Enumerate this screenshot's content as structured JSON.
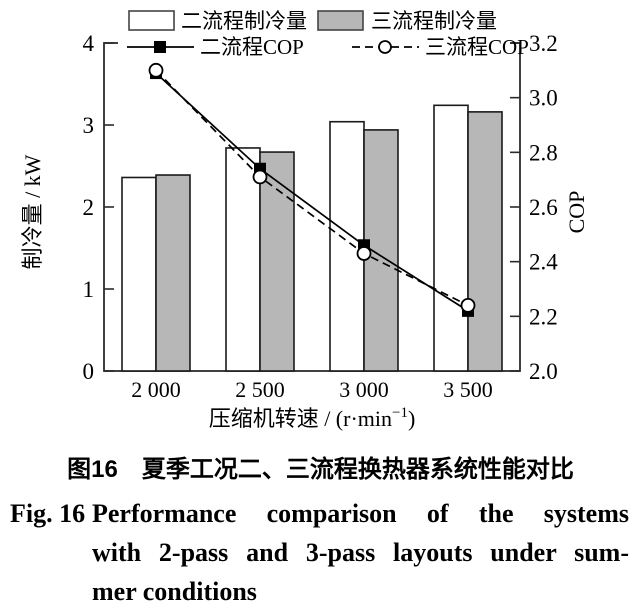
{
  "figure": {
    "caption_cn": "图16　夏季工况二、三流程换热器系统性能对比",
    "caption_en": {
      "fig_label": "Fig. 16",
      "line1": "Performance comparison of the systems",
      "line2": "with 2-pass and 3-pass layouts under sum-",
      "line3": "mer conditions"
    }
  },
  "chart_data": {
    "type": "bar+line",
    "title": "",
    "categories": [
      "2 000",
      "2 500",
      "3 000",
      "3 500"
    ],
    "xlabel": "压缩机转速 / (r·min^{−1})",
    "ylabel_left": "制冷量 / kW",
    "ylabel_right": "COP",
    "left_axis": {
      "min": 0,
      "max": 4,
      "ticks": [
        "0",
        "1",
        "2",
        "3",
        "4"
      ]
    },
    "right_axis": {
      "min": 2.0,
      "max": 3.2,
      "ticks": [
        "2.0",
        "2.2",
        "2.4",
        "2.6",
        "2.8",
        "3.0",
        "3.2"
      ]
    },
    "grid": false,
    "legend_position": "top",
    "bar_series": [
      {
        "name": "二流程制冷量",
        "axis": "left",
        "fill": "#ffffff",
        "values": [
          2.36,
          2.72,
          3.04,
          3.24
        ]
      },
      {
        "name": "三流程制冷量",
        "axis": "left",
        "fill": "#b7b7b7",
        "values": [
          2.39,
          2.67,
          2.94,
          3.16
        ]
      }
    ],
    "line_series": [
      {
        "name": "二流程COP",
        "axis": "right",
        "marker": "filled-square",
        "dash": "solid",
        "values": [
          3.09,
          2.74,
          2.46,
          2.22
        ]
      },
      {
        "name": "三流程COP",
        "axis": "right",
        "marker": "open-circle",
        "dash": "dashed",
        "values": [
          3.1,
          2.71,
          2.43,
          2.24
        ]
      }
    ],
    "colors": {
      "stroke": "#000000",
      "axis": "#2b2b2b",
      "bar_edge": "#1a1a1a",
      "gray_bar": "#b7b7b7"
    }
  }
}
